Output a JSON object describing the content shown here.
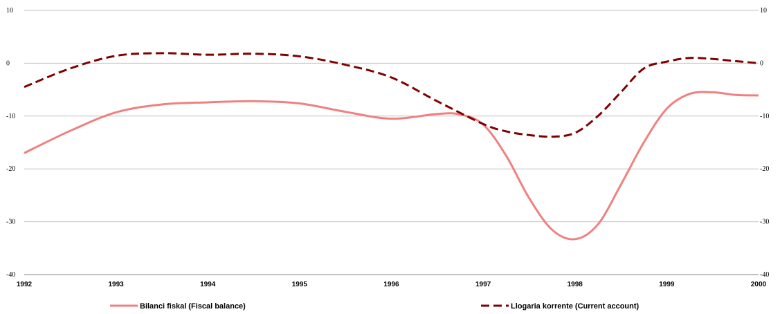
{
  "chart_data": {
    "type": "line",
    "title": "",
    "xlabel": "",
    "ylabel": "",
    "x_ticks": [
      "1992",
      "1993",
      "1994",
      "1995",
      "1996",
      "1997",
      "1998",
      "1999",
      "2000"
    ],
    "xlim": [
      1992,
      2000
    ],
    "ylim": [
      -40,
      10
    ],
    "y_ticks": [
      "10",
      "0",
      "-10",
      "-20",
      "-30",
      "-40"
    ],
    "y_tick_values": [
      10,
      0,
      -10,
      -20,
      -30,
      -40
    ],
    "grid": "horizontal",
    "legend_position": "bottom",
    "series": [
      {
        "name": "Bilanci fiskal (Fiscal balance)",
        "color": "#f08080",
        "style": "solid",
        "x": [
          1992.0,
          1992.5,
          1993.0,
          1993.5,
          1994.0,
          1994.5,
          1995.0,
          1995.5,
          1996.0,
          1996.5,
          1996.75,
          1997.0,
          1997.25,
          1997.5,
          1997.75,
          1998.0,
          1998.25,
          1998.5,
          1998.75,
          1999.0,
          1999.25,
          1999.5,
          1999.75,
          2000.0
        ],
        "values": [
          -17.0,
          -12.8,
          -9.3,
          -7.8,
          -7.4,
          -7.2,
          -7.6,
          -9.2,
          -10.5,
          -9.6,
          -9.7,
          -11.6,
          -17.5,
          -25.5,
          -31.5,
          -33.3,
          -30.5,
          -23.0,
          -15.0,
          -8.6,
          -5.8,
          -5.5,
          -6.0,
          -6.1
        ]
      },
      {
        "name": "Llogaria korrente (Current account)",
        "color": "#800000",
        "style": "dashed",
        "x": [
          1992.0,
          1992.5,
          1993.0,
          1993.5,
          1994.0,
          1994.5,
          1995.0,
          1995.5,
          1996.0,
          1996.5,
          1997.0,
          1997.25,
          1997.5,
          1997.75,
          1998.0,
          1998.25,
          1998.5,
          1998.75,
          1999.0,
          1999.25,
          1999.5,
          1999.75,
          2000.0
        ],
        "values": [
          -4.5,
          -1.0,
          1.4,
          1.9,
          1.6,
          1.8,
          1.3,
          -0.3,
          -2.7,
          -7.2,
          -11.5,
          -12.9,
          -13.6,
          -13.9,
          -13.2,
          -10.0,
          -5.5,
          -1.0,
          0.3,
          1.0,
          0.8,
          0.4,
          0.0
        ]
      }
    ]
  }
}
